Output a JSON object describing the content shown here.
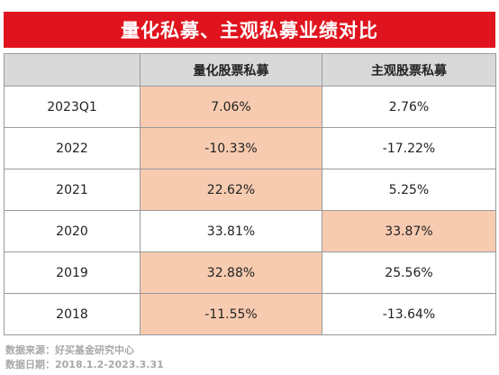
{
  "title": "量化私募、主观私募业绩对比",
  "chart_data": {
    "type": "table",
    "columns": [
      "",
      "量化股票私募",
      "主观股票私募"
    ],
    "rows": [
      {
        "period": "2023Q1",
        "quant": "7.06%",
        "subjective": "2.76%",
        "highlight": "quant"
      },
      {
        "period": "2022",
        "quant": "-10.33%",
        "subjective": "-17.22%",
        "highlight": "quant"
      },
      {
        "period": "2021",
        "quant": "22.62%",
        "subjective": "5.25%",
        "highlight": "quant"
      },
      {
        "period": "2020",
        "quant": "33.81%",
        "subjective": "33.87%",
        "highlight": "subjective"
      },
      {
        "period": "2019",
        "quant": "32.88%",
        "subjective": "25.56%",
        "highlight": "quant"
      },
      {
        "period": "2018",
        "quant": "-11.55%",
        "subjective": "-13.64%",
        "highlight": "quant"
      }
    ],
    "highlight_color": "#f7cbb0"
  },
  "footer": {
    "source": "数据来源：好买基金研究中心",
    "date": "数据日期：2018.1.2-2023.3.31"
  },
  "colors": {
    "title_bg": "#e0141e",
    "header_bg": "#d9d9d9",
    "footer_text": "#a8a8a8"
  }
}
